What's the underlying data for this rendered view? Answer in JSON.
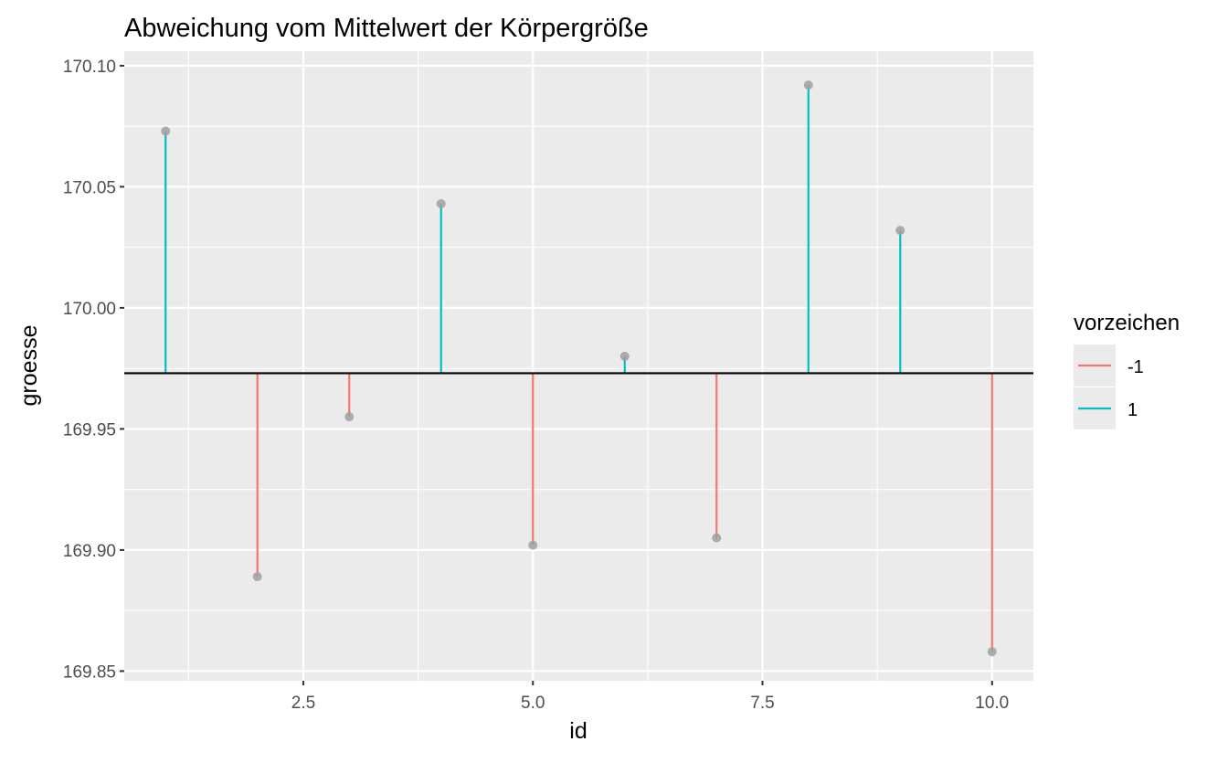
{
  "chart_data": {
    "type": "lollipop",
    "title": "Abweichung vom Mittelwert der Körpergröße",
    "xlabel": "id",
    "ylabel": "groesse",
    "xlim": [
      0.55,
      10.45
    ],
    "ylim": [
      169.846,
      170.106
    ],
    "x_ticks": [
      2.5,
      5.0,
      7.5,
      10.0
    ],
    "x_tick_labels": [
      "2.5",
      "5.0",
      "7.5",
      "10.0"
    ],
    "y_ticks": [
      169.85,
      169.9,
      169.95,
      170.0,
      170.05,
      170.1
    ],
    "y_tick_labels": [
      "169.85",
      "169.90",
      "169.95",
      "170.00",
      "170.05",
      "170.10"
    ],
    "grid": true,
    "mean_line": 169.973,
    "x": [
      1,
      2,
      3,
      4,
      5,
      6,
      7,
      8,
      9,
      10
    ],
    "y": [
      170.073,
      169.889,
      169.955,
      170.043,
      169.902,
      169.98,
      169.905,
      170.092,
      170.032,
      169.858
    ],
    "vorzeichen": [
      "1",
      "-1",
      "-1",
      "1",
      "-1",
      "1",
      "-1",
      "1",
      "1",
      "-1"
    ],
    "legend": {
      "title": "vorzeichen",
      "position": "right",
      "entries": [
        {
          "label": "-1",
          "color": "#F8766D"
        },
        {
          "label": "1",
          "color": "#00BFC4"
        }
      ]
    },
    "colors": {
      "panel": "#EBEBEB",
      "grid": "#FFFFFF",
      "point": "#A0A0A0",
      "mean_line": "#000000"
    }
  }
}
